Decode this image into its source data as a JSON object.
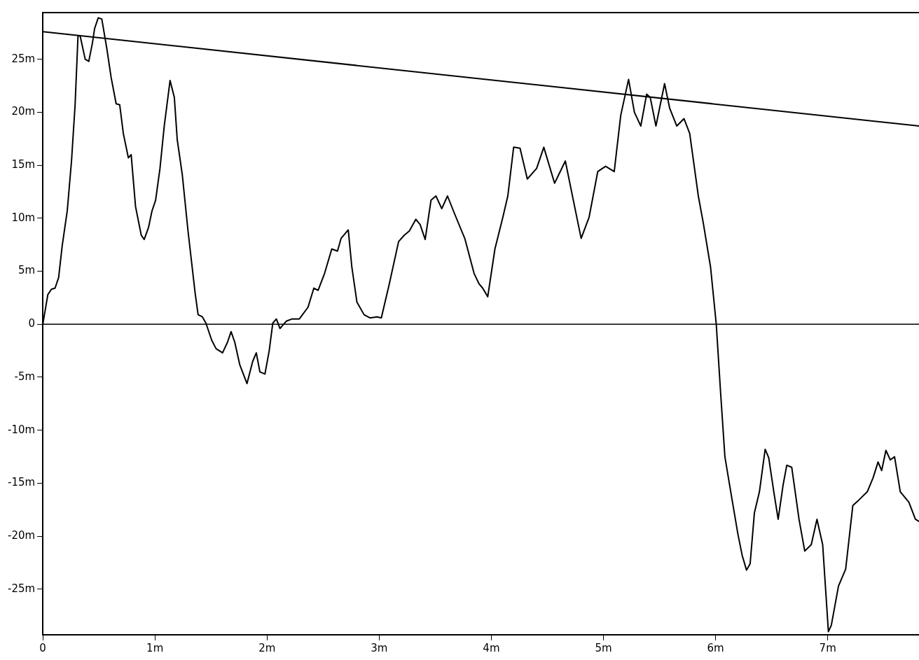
{
  "chart_data": {
    "type": "line",
    "xlim": [
      0,
      7.814
    ],
    "ylim": [
      -29.3,
      29.4
    ],
    "xticks": [
      0,
      {
        "value": 1,
        "label": "1m"
      },
      {
        "value": 2,
        "label": "2m"
      },
      {
        "value": 3,
        "label": "3m"
      },
      {
        "value": 4,
        "label": "4m"
      },
      {
        "value": 5,
        "label": "5m"
      },
      {
        "value": 6,
        "label": "6m"
      },
      {
        "value": 7,
        "label": "7m"
      }
    ],
    "yticks": [
      {
        "value": -25,
        "label": "-25m"
      },
      {
        "value": -20,
        "label": "-20m"
      },
      {
        "value": -15,
        "label": "-15m"
      },
      {
        "value": -10,
        "label": "-10m"
      },
      {
        "value": -5,
        "label": "-5m"
      },
      0,
      {
        "value": 5,
        "label": "5m"
      },
      {
        "value": 10,
        "label": "10m"
      },
      {
        "value": 15,
        "label": "15m"
      },
      {
        "value": 20,
        "label": "20m"
      },
      {
        "value": 25,
        "label": "25m"
      }
    ],
    "grid": false,
    "legend": false,
    "marker": "none",
    "line_style": "solid",
    "ref_lines": [
      {
        "axis": "y",
        "value": 0,
        "label": null,
        "color": "#000000"
      }
    ],
    "series": [
      {
        "type": "line",
        "color": "#000000",
        "x": [
          0,
          0.045,
          0.077,
          0.109,
          0.141,
          0.173,
          0.218,
          0.256,
          0.288,
          0.314,
          0.333,
          0.378,
          0.41,
          0.442,
          0.462,
          0.494,
          0.526,
          0.571,
          0.609,
          0.654,
          0.686,
          0.718,
          0.763,
          0.788,
          0.827,
          0.878,
          0.904,
          0.942,
          0.974,
          1.006,
          1.045,
          1.083,
          1.135,
          1.173,
          1.199,
          1.244,
          1.295,
          1.359,
          1.385,
          1.423,
          1.455,
          1.506,
          1.545,
          1.603,
          1.647,
          1.679,
          1.712,
          1.756,
          1.821,
          1.872,
          1.904,
          1.936,
          1.981,
          2.019,
          2.051,
          2.083,
          2.115,
          2.173,
          2.224,
          2.288,
          2.365,
          2.417,
          2.455,
          2.513,
          2.577,
          2.628,
          2.66,
          2.724,
          2.756,
          2.801,
          2.865,
          2.917,
          2.981,
          3.019,
          3.09,
          3.173,
          3.224,
          3.269,
          3.327,
          3.365,
          3.41,
          3.462,
          3.506,
          3.558,
          3.609,
          3.673,
          3.763,
          3.846,
          3.891,
          3.923,
          3.968,
          4.032,
          4.103,
          4.147,
          4.199,
          4.256,
          4.321,
          4.404,
          4.468,
          4.564,
          4.66,
          4.737,
          4.801,
          4.872,
          4.949,
          5.019,
          5.096,
          5.154,
          5.224,
          5.276,
          5.333,
          5.385,
          5.417,
          5.468,
          5.545,
          5.59,
          5.654,
          5.718,
          5.769,
          5.846,
          5.891,
          5.955,
          6.006,
          6.045,
          6.083,
          6.135,
          6.199,
          6.237,
          6.276,
          6.308,
          6.346,
          6.391,
          6.442,
          6.474,
          6.519,
          6.558,
          6.603,
          6.635,
          6.679,
          6.744,
          6.795,
          6.853,
          6.904,
          6.955,
          7.006,
          7.032,
          7.096,
          7.16,
          7.224,
          7.276,
          7.353,
          7.404,
          7.449,
          7.481,
          7.519,
          7.558,
          7.596,
          7.647,
          7.724,
          7.782,
          7.814
        ],
        "values": [
          0,
          2.8,
          3.3,
          3.4,
          4.4,
          7.4,
          10.7,
          15.4,
          20.7,
          27.2,
          27.2,
          25.0,
          24.8,
          26.5,
          27.9,
          28.9,
          28.8,
          26.0,
          23.3,
          20.8,
          20.7,
          18.0,
          15.7,
          16.0,
          11.1,
          8.4,
          8.0,
          9.1,
          10.7,
          11.7,
          14.7,
          18.7,
          23.0,
          21.4,
          17.4,
          14.1,
          8.8,
          2.9,
          0.9,
          0.7,
          0.1,
          -1.5,
          -2.3,
          -2.7,
          -1.7,
          -0.7,
          -1.7,
          -3.8,
          -5.6,
          -3.5,
          -2.7,
          -4.5,
          -4.7,
          -2.5,
          0.1,
          0.5,
          -0.4,
          0.3,
          0.5,
          0.5,
          1.6,
          3.4,
          3.2,
          4.8,
          7.1,
          6.9,
          8.1,
          8.9,
          5.4,
          2.1,
          0.9,
          0.6,
          0.7,
          0.6,
          3.8,
          7.8,
          8.4,
          8.8,
          9.9,
          9.4,
          8.0,
          11.7,
          12.1,
          10.9,
          12.1,
          10.4,
          8.1,
          4.8,
          3.8,
          3.4,
          2.6,
          7.1,
          10.1,
          12.1,
          16.7,
          16.6,
          13.7,
          14.7,
          16.7,
          13.3,
          15.4,
          11.4,
          8.1,
          10.1,
          14.4,
          14.9,
          14.4,
          19.7,
          23.1,
          20.0,
          18.7,
          21.7,
          21.4,
          18.7,
          22.7,
          20.4,
          18.7,
          19.4,
          18.0,
          12.1,
          9.5,
          5.4,
          0,
          -6.5,
          -12.5,
          -15.8,
          -19.8,
          -21.8,
          -23.2,
          -22.6,
          -17.8,
          -15.8,
          -11.8,
          -12.6,
          -15.8,
          -18.4,
          -15.1,
          -13.3,
          -13.5,
          -18.4,
          -21.4,
          -20.8,
          -18.4,
          -20.8,
          -29.0,
          -28.4,
          -24.7,
          -23.1,
          -17.1,
          -16.6,
          -15.8,
          -14.5,
          -13.0,
          -13.8,
          -11.9,
          -12.8,
          -12.5,
          -15.8,
          -16.8,
          -18.4,
          -18.6
        ]
      },
      {
        "type": "line",
        "color": "#000000",
        "x": [
          0,
          7.814
        ],
        "values": [
          27.6,
          18.7
        ]
      }
    ]
  }
}
